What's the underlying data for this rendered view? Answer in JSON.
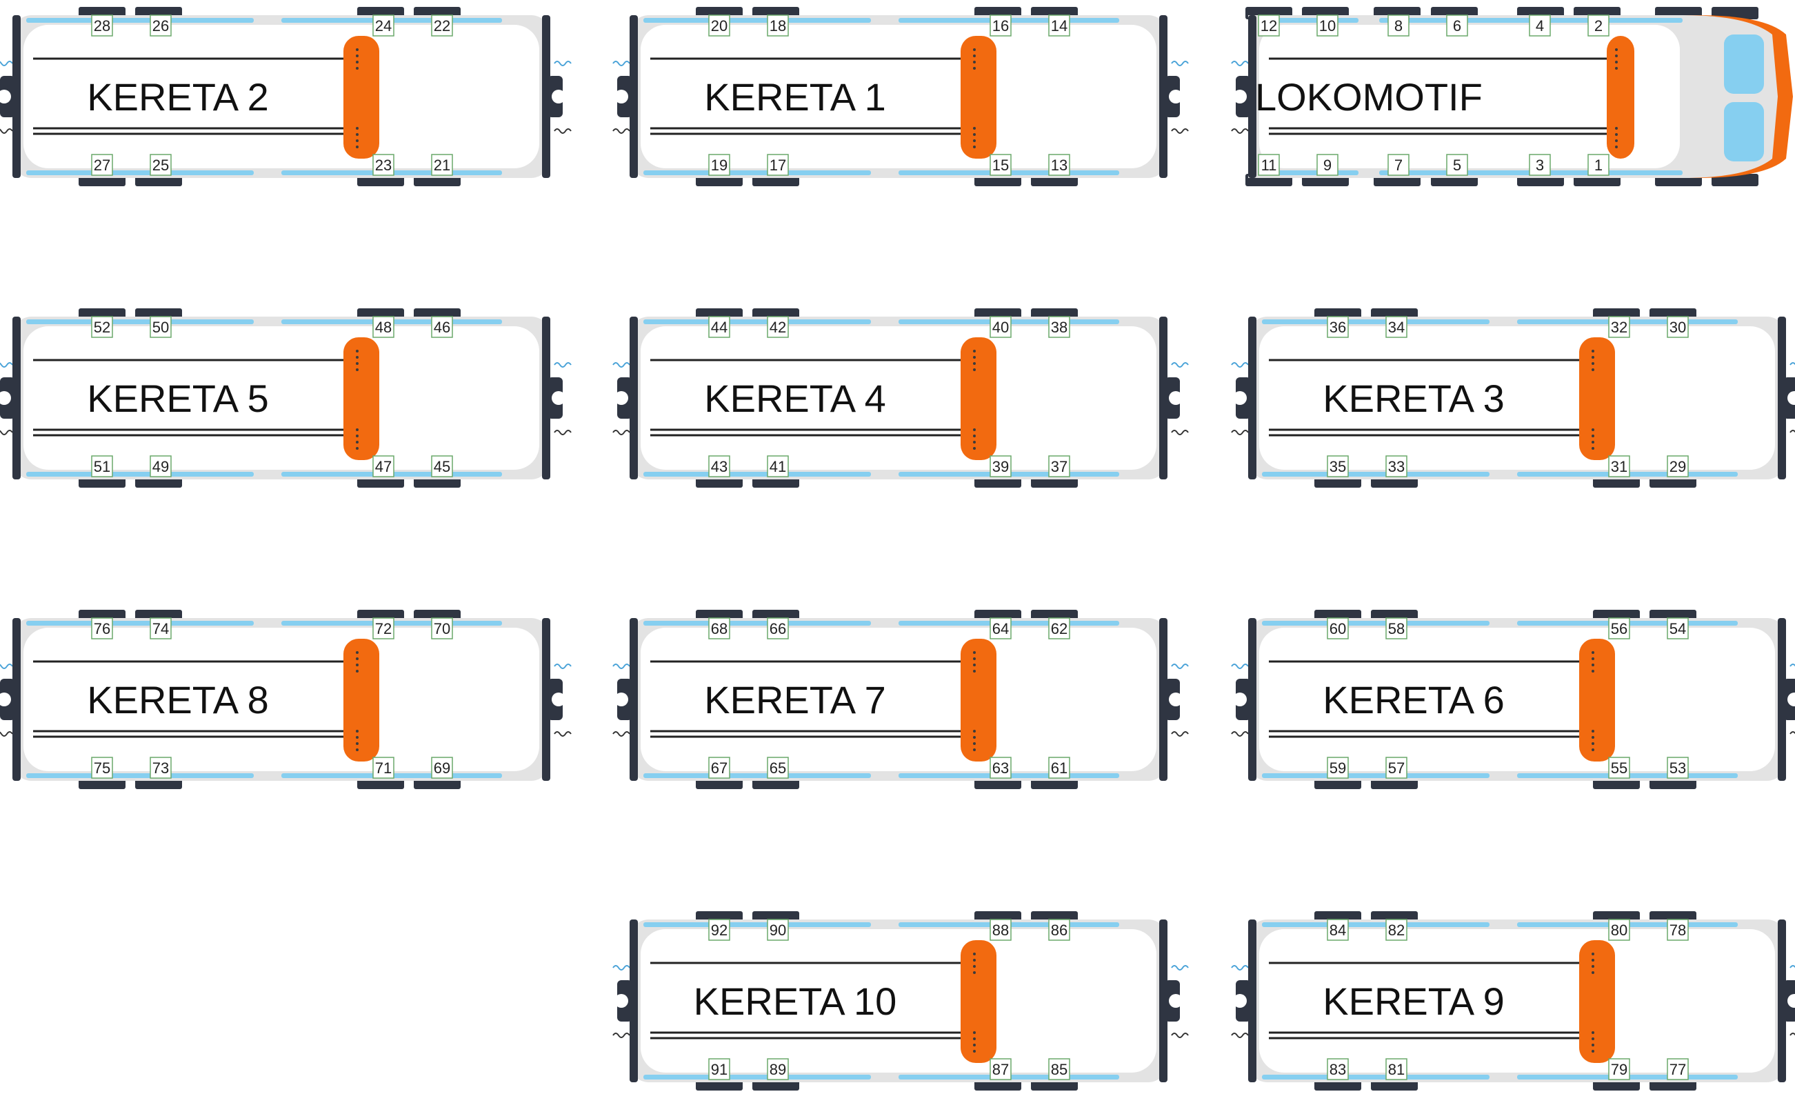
{
  "colors": {
    "body_outer": "#e3e3e3",
    "body_inner": "#ffffff",
    "frame_dark": "#2f3542",
    "window_blue": "#86cff0",
    "door_orange": "#f26a10",
    "number_box_border": "#6aa86a",
    "line_dark": "#222222",
    "coupler_wave": "#4aa3d8"
  },
  "cars": [
    {
      "label": "KERETA 2",
      "top": [
        "28",
        "26",
        "24",
        "22"
      ],
      "bottom": [
        "27",
        "25",
        "23",
        "21"
      ]
    },
    {
      "label": "KERETA 1",
      "top": [
        "20",
        "18",
        "16",
        "14"
      ],
      "bottom": [
        "19",
        "17",
        "15",
        "13"
      ]
    },
    {
      "label": "LOKOMOTIF",
      "top": [
        "12",
        "10",
        "8",
        "6",
        "4",
        "2"
      ],
      "bottom": [
        "11",
        "9",
        "7",
        "5",
        "3",
        "1"
      ],
      "locomotive": true
    },
    {
      "label": "KERETA 5",
      "top": [
        "52",
        "50",
        "48",
        "46"
      ],
      "bottom": [
        "51",
        "49",
        "47",
        "45"
      ]
    },
    {
      "label": "KERETA 4",
      "top": [
        "44",
        "42",
        "40",
        "38"
      ],
      "bottom": [
        "43",
        "41",
        "39",
        "37"
      ]
    },
    {
      "label": "KERETA 3",
      "top": [
        "36",
        "34",
        "32",
        "30"
      ],
      "bottom": [
        "35",
        "33",
        "31",
        "29"
      ]
    },
    {
      "label": "KERETA 8",
      "top": [
        "76",
        "74",
        "72",
        "70"
      ],
      "bottom": [
        "75",
        "73",
        "71",
        "69"
      ]
    },
    {
      "label": "KERETA 7",
      "top": [
        "68",
        "66",
        "64",
        "62"
      ],
      "bottom": [
        "67",
        "65",
        "63",
        "61"
      ]
    },
    {
      "label": "KERETA 6",
      "top": [
        "60",
        "58",
        "56",
        "54"
      ],
      "bottom": [
        "59",
        "57",
        "55",
        "53"
      ]
    },
    {
      "label": "KERETA 10",
      "top": [
        "92",
        "90",
        "88",
        "86"
      ],
      "bottom": [
        "91",
        "89",
        "87",
        "85"
      ]
    },
    {
      "label": "KERETA 9",
      "top": [
        "84",
        "82",
        "80",
        "78"
      ],
      "bottom": [
        "83",
        "81",
        "79",
        "77"
      ]
    }
  ]
}
